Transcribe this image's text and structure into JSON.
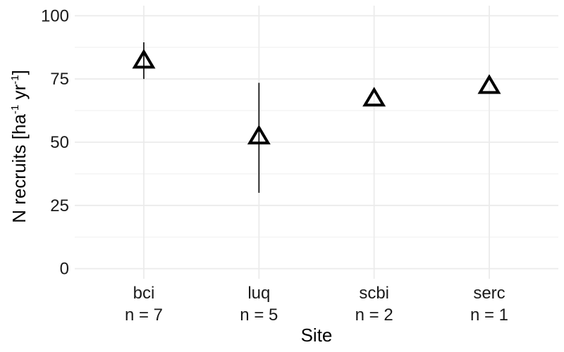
{
  "chart_data": {
    "type": "scatter",
    "xlabel": "Site",
    "ylabel": {
      "main": "N recruits [ha",
      "sup1": "-1",
      "mid": " yr",
      "sup2": "-1",
      "end": "]"
    },
    "ylim": [
      -4,
      104
    ],
    "yticks": [
      0,
      25,
      50,
      75,
      100
    ],
    "grid": true,
    "marker": "open-triangle",
    "categories": [
      {
        "label": "bci",
        "n_label": "n = 7",
        "value": 82,
        "err_low": 75,
        "err_high": 89.5
      },
      {
        "label": "luq",
        "n_label": "n = 5",
        "value": 52,
        "err_low": 30,
        "err_high": 73.5
      },
      {
        "label": "scbi",
        "n_label": "n = 2",
        "value": 67,
        "err_low": null,
        "err_high": null
      },
      {
        "label": "serc",
        "n_label": "n = 1",
        "value": 72,
        "err_low": null,
        "err_high": null
      }
    ]
  }
}
